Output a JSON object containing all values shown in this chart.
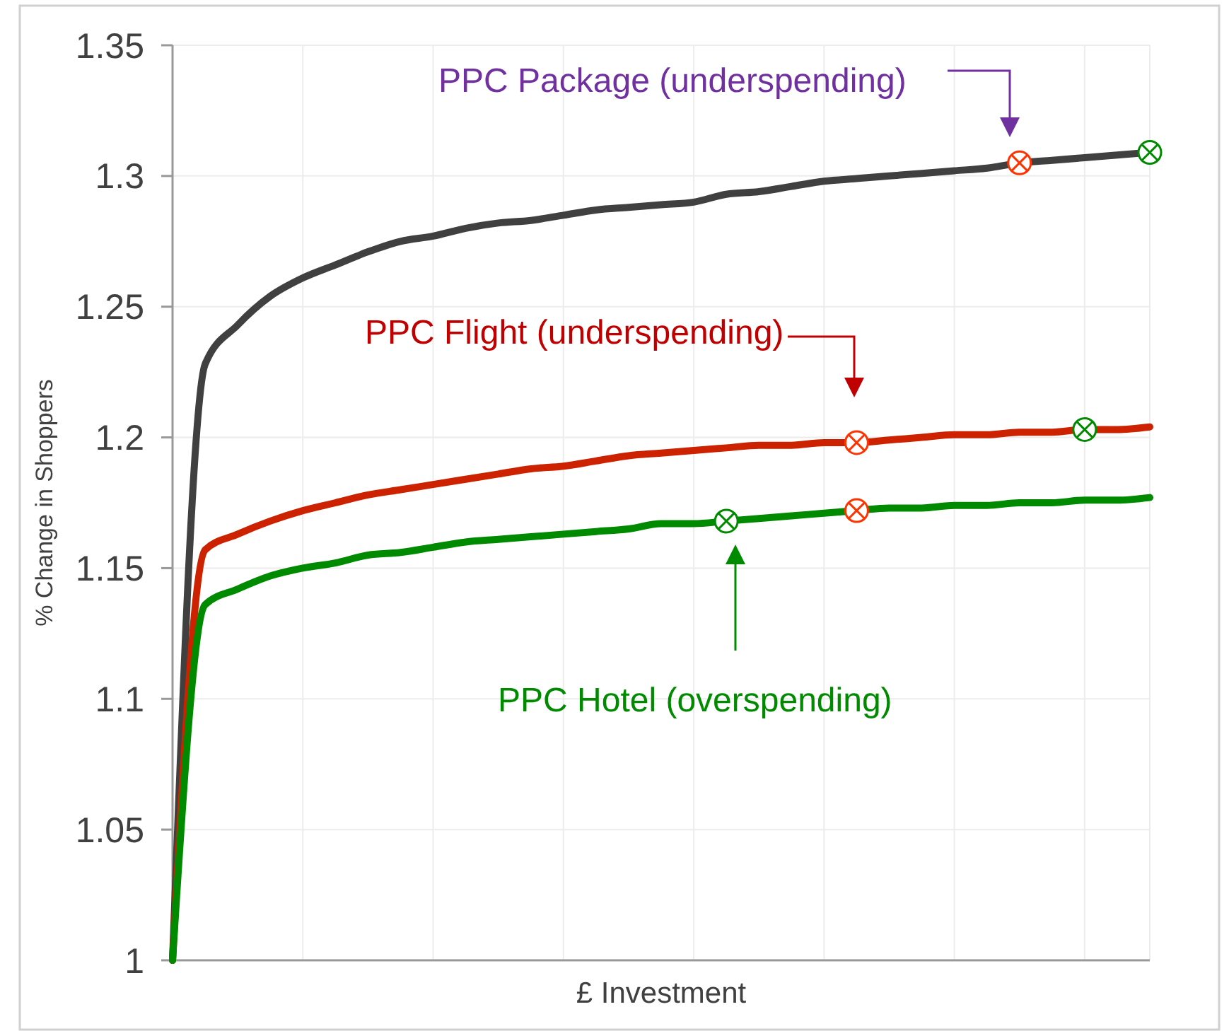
{
  "chart_data": {
    "type": "line",
    "xlabel": "£ Investment",
    "ylabel": "% Change in Shoppers",
    "categories": [
      null,
      null,
      null,
      null,
      null,
      null,
      null,
      null,
      null,
      null,
      null,
      null,
      null,
      null,
      null,
      null,
      null,
      null,
      null,
      null,
      null,
      null,
      null,
      null,
      null,
      null,
      null,
      null,
      null,
      null,
      null
    ],
    "series": [
      {
        "color": "#404040",
        "values": [
          1.0,
          1.228,
          1.243,
          1.254,
          1.261,
          1.266,
          1.271,
          1.275,
          1.277,
          1.28,
          1.282,
          1.283,
          1.285,
          1.287,
          1.288,
          1.289,
          1.29,
          1.293,
          1.294,
          1.296,
          1.298,
          1.299,
          1.3,
          1.301,
          1.302,
          1.303,
          1.305,
          1.306,
          1.307,
          1.308,
          1.309
        ]
      },
      {
        "color": "#cc2200",
        "values": [
          1.0,
          1.157,
          1.163,
          1.168,
          1.172,
          1.175,
          1.178,
          1.18,
          1.182,
          1.184,
          1.186,
          1.188,
          1.189,
          1.191,
          1.193,
          1.194,
          1.195,
          1.196,
          1.197,
          1.197,
          1.198,
          1.198,
          1.199,
          1.2,
          1.201,
          1.201,
          1.202,
          1.202,
          1.203,
          1.203,
          1.204
        ]
      },
      {
        "color": "#008a00",
        "values": [
          1.0,
          1.136,
          1.142,
          1.147,
          1.15,
          1.152,
          1.155,
          1.156,
          1.158,
          1.16,
          1.161,
          1.162,
          1.163,
          1.164,
          1.165,
          1.167,
          1.167,
          1.168,
          1.169,
          1.17,
          1.171,
          1.172,
          1.173,
          1.173,
          1.174,
          1.174,
          1.175,
          1.175,
          1.176,
          1.176,
          1.177
        ]
      },
      {
        "type": "scatter",
        "marker": "circle",
        "color": "#ff3300",
        "values": [
          null,
          null,
          null,
          null,
          null,
          null,
          null,
          null,
          null,
          null,
          null,
          null,
          null,
          null,
          null,
          null,
          null,
          null,
          null,
          null,
          null,
          1.198,
          null,
          null,
          null,
          null,
          1.305,
          null,
          null,
          null,
          null
        ]
      },
      {
        "type": "scatter",
        "marker": "circle",
        "color": "#ff3300",
        "values": [
          null,
          null,
          null,
          null,
          null,
          null,
          null,
          null,
          null,
          null,
          null,
          null,
          null,
          null,
          null,
          null,
          null,
          null,
          null,
          null,
          null,
          1.172,
          null,
          null,
          null,
          null,
          null,
          null,
          null,
          null,
          null
        ]
      },
      {
        "type": "scatter",
        "marker": "circle",
        "color": "#008a00",
        "values": [
          null,
          null,
          null,
          null,
          null,
          null,
          null,
          null,
          null,
          null,
          null,
          null,
          null,
          null,
          null,
          null,
          null,
          1.168,
          null,
          null,
          null,
          null,
          null,
          null,
          null,
          null,
          null,
          null,
          1.203,
          null,
          1.309
        ]
      }
    ],
    "ylim": [
      1,
      1.35
    ],
    "yticks": [
      1,
      1.05,
      1.1,
      1.15,
      1.2,
      1.25,
      1.3,
      1.35
    ],
    "grid": true,
    "tick_labels": "y",
    "marker": "none",
    "line_style": "solid",
    "annotations": [
      "PPC Package (underspending)",
      "PPC Flight (underspending)",
      "PPC Hotel (overspending)"
    ]
  }
}
